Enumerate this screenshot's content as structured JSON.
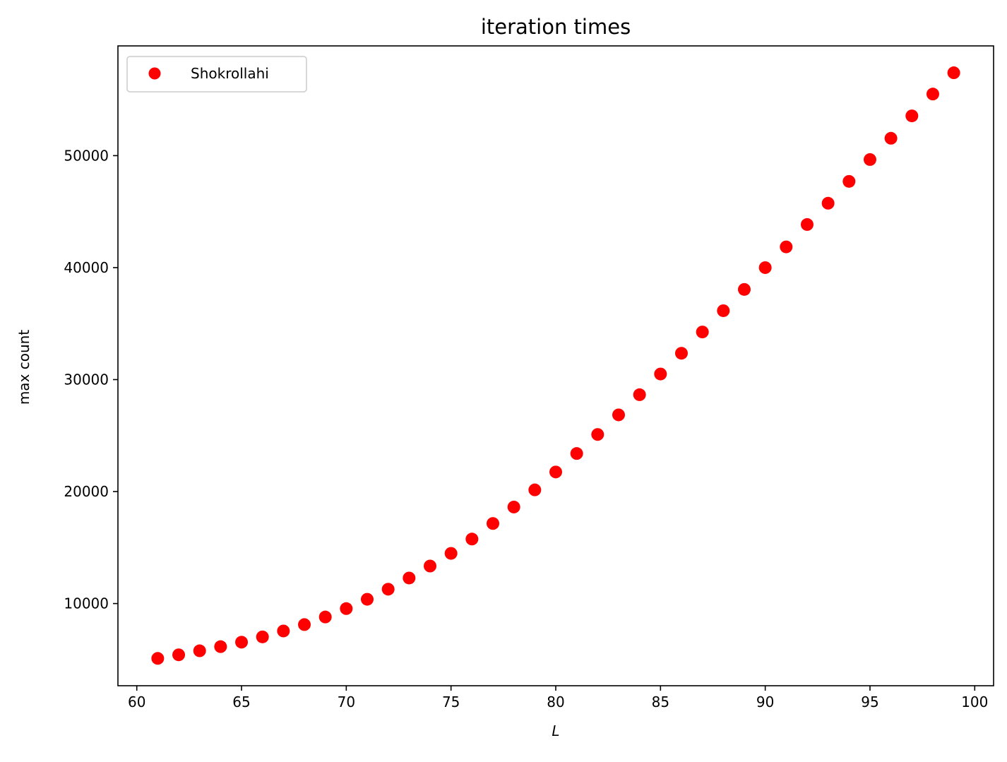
{
  "chart_data": {
    "type": "scatter",
    "title": "iteration times",
    "xlabel": "L",
    "ylabel": "max count",
    "xlim": [
      59.1,
      100.9
    ],
    "ylim": [
      2660,
      59800
    ],
    "xticks": [
      60,
      65,
      70,
      75,
      80,
      85,
      90,
      95,
      100
    ],
    "yticks": [
      10000,
      20000,
      30000,
      40000,
      50000
    ],
    "grid": false,
    "legend_position": "top-left",
    "series": [
      {
        "name": "Shokrollahi",
        "color": "#ff0000",
        "marker": "circle",
        "x": [
          61,
          62,
          63,
          64,
          65,
          66,
          67,
          68,
          69,
          70,
          71,
          72,
          73,
          74,
          75,
          76,
          77,
          78,
          79,
          80,
          81,
          82,
          83,
          84,
          85,
          86,
          87,
          88,
          89,
          90,
          91,
          92,
          93,
          94,
          95,
          96,
          97,
          98,
          99
        ],
        "y": [
          5100,
          5420,
          5780,
          6150,
          6550,
          7020,
          7550,
          8120,
          8800,
          9550,
          10380,
          11280,
          12280,
          13350,
          14480,
          15760,
          17150,
          18620,
          20150,
          21750,
          23400,
          25100,
          26850,
          28650,
          30500,
          32350,
          34250,
          36150,
          38050,
          40000,
          41850,
          43850,
          45750,
          47700,
          49650,
          51550,
          53550,
          55500,
          57400
        ]
      }
    ]
  }
}
